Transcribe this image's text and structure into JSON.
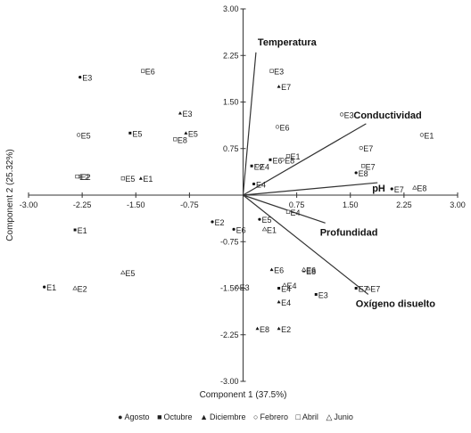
{
  "chart_data": {
    "type": "scatter",
    "subtype": "biplot",
    "xlabel": "Component 1 (37.5%)",
    "ylabel": "Component 2 (25.32%)",
    "xlim": [
      -3.0,
      3.0
    ],
    "ylim": [
      -3.0,
      3.0
    ],
    "xticks": [
      "-3.00",
      "-2.25",
      "-1.50",
      "-0.75",
      "0.75",
      "1.50",
      "2.25",
      "3.00"
    ],
    "yticks": [
      "3.00",
      "2.25",
      "1.50",
      "0.75",
      "-0.75",
      "-1.50",
      "-2.25",
      "-3.00"
    ],
    "legend_position": "bottom",
    "legend": [
      {
        "label": "Agosto",
        "symbol": "●"
      },
      {
        "label": "Octubre",
        "symbol": "■"
      },
      {
        "label": "Diciembre",
        "symbol": "▲"
      },
      {
        "label": "Febrero",
        "symbol": "○"
      },
      {
        "label": "Abril",
        "symbol": "□"
      },
      {
        "label": "Junio",
        "symbol": "△"
      }
    ],
    "vectors": [
      {
        "name": "Temperatura",
        "x": 0.18,
        "y": 2.3
      },
      {
        "name": "Conductividad",
        "x": 1.72,
        "y": 1.15
      },
      {
        "name": "pH",
        "x": 1.88,
        "y": 0.2
      },
      {
        "name": "Profundidad",
        "x": 1.15,
        "y": -0.45
      },
      {
        "name": "Oxígeno disuelto",
        "x": 1.75,
        "y": -1.6
      }
    ],
    "points": [
      {
        "label": "E1",
        "month": "Agosto",
        "x": -2.78,
        "y": -1.48
      },
      {
        "label": "E2",
        "month": "Agosto",
        "x": -0.43,
        "y": -0.43
      },
      {
        "label": "E3",
        "month": "Agosto",
        "x": -2.28,
        "y": 1.9
      },
      {
        "label": "E4",
        "month": "Agosto",
        "x": 0.15,
        "y": 0.18
      },
      {
        "label": "E5",
        "month": "Agosto",
        "x": 0.23,
        "y": -0.39
      },
      {
        "label": "E6",
        "month": "Agosto",
        "x": -0.13,
        "y": -0.55
      },
      {
        "label": "E7",
        "month": "Agosto",
        "x": 2.08,
        "y": 0.1
      },
      {
        "label": "E8",
        "month": "Agosto",
        "x": 1.58,
        "y": 0.36
      },
      {
        "label": "E1",
        "month": "Octubre",
        "x": -2.35,
        "y": -0.56
      },
      {
        "label": "E2",
        "month": "Octubre",
        "x": 0.12,
        "y": 0.47
      },
      {
        "label": "E3",
        "month": "Octubre",
        "x": 1.02,
        "y": -1.6
      },
      {
        "label": "E4",
        "month": "Octubre",
        "x": 0.5,
        "y": -1.5
      },
      {
        "label": "E5",
        "month": "Octubre",
        "x": -1.58,
        "y": 1.0
      },
      {
        "label": "E6",
        "month": "Octubre",
        "x": 0.38,
        "y": 0.57
      },
      {
        "label": "E7",
        "month": "Octubre",
        "x": 1.58,
        "y": -1.5
      },
      {
        "label": "E8",
        "month": "Octubre",
        "x": 0.85,
        "y": -1.22
      },
      {
        "label": "E1",
        "month": "Diciembre",
        "x": -1.43,
        "y": 0.27
      },
      {
        "label": "E2",
        "month": "Diciembre",
        "x": 0.5,
        "y": -2.15
      },
      {
        "label": "E3",
        "month": "Diciembre",
        "x": -0.88,
        "y": 1.32
      },
      {
        "label": "E4",
        "month": "Diciembre",
        "x": 0.5,
        "y": -1.72
      },
      {
        "label": "E5",
        "month": "Diciembre",
        "x": -0.8,
        "y": 1.0
      },
      {
        "label": "E6",
        "month": "Diciembre",
        "x": 0.4,
        "y": -1.2
      },
      {
        "label": "E7",
        "month": "Diciembre",
        "x": 0.5,
        "y": 1.75
      },
      {
        "label": "E8",
        "month": "Diciembre",
        "x": 0.2,
        "y": -2.15
      },
      {
        "label": "E1",
        "month": "Febrero",
        "x": 2.5,
        "y": 0.97
      },
      {
        "label": "E2",
        "month": "Febrero",
        "x": -2.3,
        "y": 0.3
      },
      {
        "label": "E3",
        "month": "Febrero",
        "x": 1.38,
        "y": 1.3
      },
      {
        "label": "E4",
        "month": "Febrero",
        "x": 0.2,
        "y": 0.47
      },
      {
        "label": "E5",
        "month": "Febrero",
        "x": -2.3,
        "y": 0.97
      },
      {
        "label": "E6",
        "month": "Febrero",
        "x": 0.48,
        "y": 1.1
      },
      {
        "label": "E7",
        "month": "Febrero",
        "x": 1.65,
        "y": 0.76
      },
      {
        "label": "E8",
        "month": "Febrero",
        "x": 0.55,
        "y": 0.57
      },
      {
        "label": "E1",
        "month": "Abril",
        "x": 0.63,
        "y": 0.63
      },
      {
        "label": "E2",
        "month": "Abril",
        "x": -2.32,
        "y": 0.3
      },
      {
        "label": "E3",
        "month": "Abril",
        "x": 0.4,
        "y": 2.0
      },
      {
        "label": "E4",
        "month": "Abril",
        "x": 0.63,
        "y": -0.27
      },
      {
        "label": "E5",
        "month": "Abril",
        "x": -1.68,
        "y": 0.27
      },
      {
        "label": "E6",
        "month": "Abril",
        "x": -1.4,
        "y": 2.0
      },
      {
        "label": "E7",
        "month": "Abril",
        "x": 1.68,
        "y": 0.47
      },
      {
        "label": "E8",
        "month": "Abril",
        "x": -0.95,
        "y": 0.9
      },
      {
        "label": "E1",
        "month": "Junio",
        "x": 0.3,
        "y": -0.55
      },
      {
        "label": "E2",
        "month": "Junio",
        "x": -2.35,
        "y": -1.5
      },
      {
        "label": "E3",
        "month": "Junio",
        "x": -0.08,
        "y": -1.48
      },
      {
        "label": "E4",
        "month": "Junio",
        "x": 0.58,
        "y": -1.45
      },
      {
        "label": "E5",
        "month": "Junio",
        "x": -1.68,
        "y": -1.25
      },
      {
        "label": "E6",
        "month": "Junio",
        "x": 0.85,
        "y": -1.2
      },
      {
        "label": "E7",
        "month": "Junio",
        "x": 1.75,
        "y": -1.5
      },
      {
        "label": "E8",
        "month": "Junio",
        "x": 2.4,
        "y": 0.12
      }
    ]
  }
}
